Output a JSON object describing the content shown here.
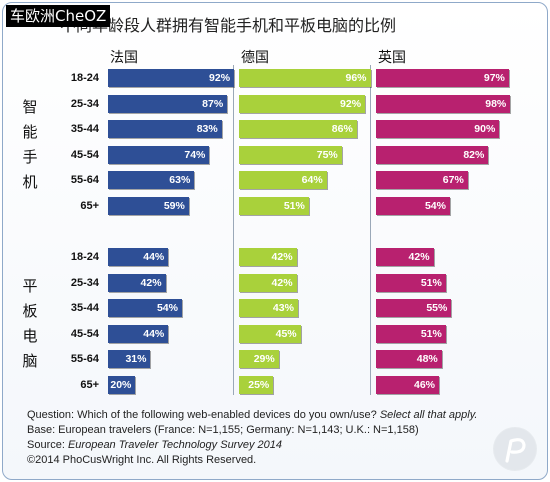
{
  "watermark": "车欧洲CheOZ",
  "chart_data": {
    "type": "bar",
    "title": "不同年龄段人群拥有智能手机和平板电脑的比例",
    "columns": [
      "法国",
      "德国",
      "英国"
    ],
    "categories": [
      "18-24",
      "25-34",
      "35-44",
      "45-54",
      "55-64",
      "65+"
    ],
    "colors": {
      "法国": "#2e4f96",
      "德国": "#a9d13b",
      "英国": "#b8216f"
    },
    "xlim": [
      0,
      100
    ],
    "sections": [
      {
        "label": [
          "智",
          "能",
          "手",
          "机"
        ],
        "series": [
          {
            "name": "法国",
            "values": [
              92,
              87,
              83,
              74,
              63,
              59
            ]
          },
          {
            "name": "德国",
            "values": [
              96,
              92,
              86,
              75,
              64,
              51
            ]
          },
          {
            "name": "英国",
            "values": [
              97,
              98,
              90,
              82,
              67,
              54
            ]
          }
        ]
      },
      {
        "label": [
          "平",
          "板",
          "电",
          "脑"
        ],
        "series": [
          {
            "name": "法国",
            "values": [
              44,
              42,
              54,
              44,
              31,
              20
            ]
          },
          {
            "name": "德国",
            "values": [
              42,
              42,
              43,
              45,
              29,
              25
            ]
          },
          {
            "name": "英国",
            "values": [
              42,
              51,
              55,
              51,
              48,
              46
            ]
          }
        ]
      }
    ]
  },
  "footnote": {
    "line1_prefix": "Question: Which of the following web-enabled devices do you own/use? ",
    "line1_italic": "Select all that apply.",
    "line2": "Base: European travelers (France: N=1,155; Germany: N=1,143; U.K.: N=1,158)",
    "line3_prefix": "Source: ",
    "line3_italic": "European Traveler Technology Survey 2014",
    "line4": "©2014 PhoCusWright Inc. All Rights Reserved."
  },
  "logo_icon": "phocuswright-logo-icon"
}
